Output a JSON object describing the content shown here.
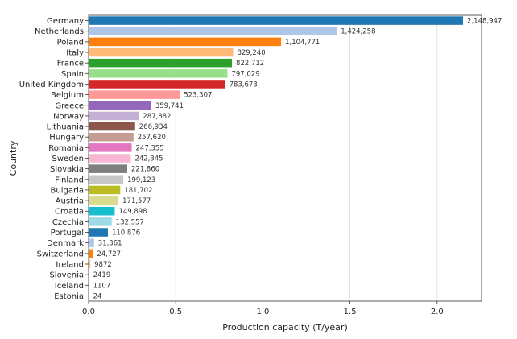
{
  "chart_data": {
    "type": "bar",
    "orientation": "horizontal",
    "xlabel": "Production capacity (T/year)",
    "ylabel": "Country",
    "xlim": [
      0,
      2.255
    ],
    "xticks": [
      0.0,
      0.5,
      1.0,
      1.5,
      2.0
    ],
    "xtick_labels": [
      "0.0",
      "0.5",
      "1.0",
      "1.5",
      "2.0"
    ],
    "x_scale_factor": 1000000,
    "grid": true,
    "categories": [
      "Germany",
      "Netherlands",
      "Poland",
      "Italy",
      "France",
      "Spain",
      "United Kingdom",
      "Belgium",
      "Greece",
      "Norway",
      "Lithuania",
      "Hungary",
      "Romania",
      "Sweden",
      "Slovakia",
      "Finland",
      "Bulgaria",
      "Austria",
      "Croatia",
      "Czechia",
      "Portugal",
      "Denmark",
      "Switzerland",
      "Ireland",
      "Slovenia",
      "Iceland",
      "Estonia"
    ],
    "values": [
      2148947,
      1424258,
      1104771,
      829240,
      822712,
      797029,
      783673,
      523307,
      359741,
      287882,
      266934,
      257620,
      247355,
      242345,
      221860,
      199123,
      181702,
      171577,
      149898,
      132557,
      110876,
      31361,
      24727,
      9872,
      2419,
      1107,
      24
    ],
    "value_labels": [
      "2,148,947",
      "1,424,258",
      "1,104,771",
      "829,240",
      "822,712",
      "797,029",
      "783,673",
      "523,307",
      "359,741",
      "287,882",
      "266,934",
      "257,620",
      "247,355",
      "242,345",
      "221,860",
      "199,123",
      "181,702",
      "171,577",
      "149,898",
      "132,557",
      "110,876",
      "31,361",
      "24,727",
      "9872",
      "2419",
      "1107",
      "24"
    ],
    "colors": [
      "#1f77b4",
      "#aec7e8",
      "#ff7f0e",
      "#ffbb78",
      "#2ca02c",
      "#98df8a",
      "#d62728",
      "#ff9896",
      "#9467bd",
      "#c5b0d5",
      "#8c564b",
      "#c49c94",
      "#e377c2",
      "#f7b6d2",
      "#7f7f7f",
      "#c7c7c7",
      "#bcbd22",
      "#dbdb8d",
      "#17becf",
      "#9edae5",
      "#1f77b4",
      "#aec7e8",
      "#ff7f0e",
      "#ffbb78",
      "#2ca02c",
      "#98df8a",
      "#d62728"
    ]
  }
}
